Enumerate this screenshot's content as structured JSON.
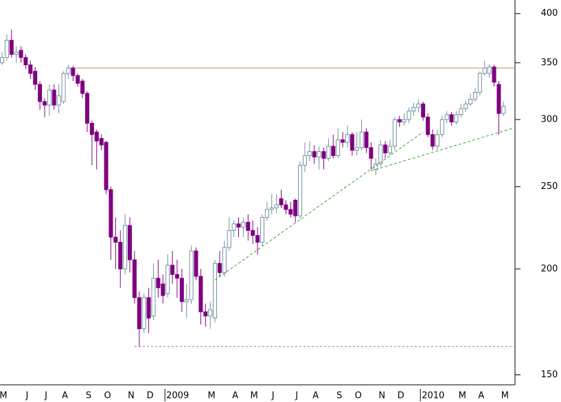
{
  "chart_data": {
    "type": "candlestick",
    "categories": [
      "M",
      null,
      null,
      null,
      null,
      "J",
      null,
      null,
      null,
      "J",
      null,
      null,
      null,
      "A",
      null,
      null,
      null,
      null,
      "S",
      null,
      null,
      null,
      "O",
      null,
      null,
      null,
      null,
      "N",
      null,
      null,
      null,
      "D",
      null,
      null,
      null,
      "2009",
      null,
      null,
      null,
      null,
      null,
      null,
      null,
      null,
      "M",
      null,
      null,
      null,
      null,
      "A",
      null,
      null,
      null,
      "M",
      null,
      null,
      null,
      "J",
      null,
      null,
      null,
      null,
      "J",
      null,
      null,
      null,
      "A",
      null,
      null,
      null,
      null,
      "S",
      null,
      null,
      null,
      "O",
      null,
      null,
      null,
      null,
      "N",
      null,
      null,
      null,
      "D",
      null,
      null,
      null,
      null,
      "2010",
      null,
      null,
      null,
      null,
      null,
      null,
      null,
      "M",
      null,
      null,
      null,
      "A",
      null,
      null,
      null,
      null,
      "M"
    ],
    "open": [
      350,
      355,
      372,
      358,
      362,
      355,
      348,
      342,
      330,
      315,
      312,
      325,
      312,
      315,
      340,
      345,
      338,
      333,
      322,
      297,
      290,
      285,
      282,
      248,
      218,
      215,
      200,
      225,
      205,
      185,
      170,
      185,
      176,
      195,
      192,
      187,
      202,
      197,
      195,
      183,
      184,
      210,
      196,
      178,
      176,
      175,
      203,
      198,
      212,
      222,
      226,
      224,
      227,
      222,
      219,
      215,
      230,
      235,
      236,
      242,
      238,
      235,
      241,
      231,
      265,
      272,
      275,
      271,
      275,
      270,
      279,
      272,
      284,
      282,
      288,
      276,
      278,
      290,
      278,
      262,
      266,
      280,
      274,
      279,
      300,
      298,
      300,
      307,
      310,
      313,
      302,
      288,
      279,
      288,
      300,
      304,
      298,
      304,
      309,
      313,
      317,
      323,
      340,
      340,
      346,
      330,
      305
    ],
    "high": [
      360,
      378,
      383,
      366,
      366,
      358,
      352,
      346,
      333,
      318,
      330,
      330,
      330,
      342,
      348,
      347,
      340,
      335,
      324,
      299,
      292,
      288,
      283,
      250,
      230,
      222,
      232,
      230,
      210,
      188,
      187,
      190,
      203,
      205,
      197,
      208,
      210,
      205,
      200,
      192,
      213,
      212,
      200,
      182,
      183,
      205,
      210,
      216,
      230,
      228,
      230,
      230,
      232,
      228,
      224,
      232,
      240,
      245,
      245,
      248,
      241,
      240,
      242,
      268,
      282,
      283,
      280,
      279,
      278,
      285,
      288,
      293,
      290,
      295,
      290,
      290,
      300,
      293,
      282,
      270,
      284,
      283,
      284,
      302,
      303,
      305,
      310,
      314,
      317,
      315,
      305,
      292,
      292,
      303,
      307,
      306,
      307,
      313,
      316,
      322,
      327,
      342,
      352,
      349,
      348,
      333,
      315
    ],
    "low": [
      348,
      352,
      355,
      350,
      350,
      344,
      335,
      325,
      308,
      302,
      303,
      308,
      305,
      313,
      335,
      333,
      328,
      318,
      290,
      265,
      262,
      276,
      245,
      205,
      200,
      190,
      197,
      198,
      182,
      162,
      168,
      168,
      174,
      185,
      182,
      185,
      192,
      185,
      178,
      175,
      182,
      194,
      172,
      171,
      170,
      173,
      196,
      196,
      210,
      218,
      218,
      218,
      216,
      214,
      208,
      213,
      228,
      232,
      233,
      236,
      232,
      230,
      227,
      229,
      260,
      268,
      266,
      262,
      262,
      268,
      270,
      270,
      278,
      278,
      272,
      272,
      276,
      274,
      262,
      258,
      264,
      270,
      272,
      276,
      294,
      295,
      297,
      303,
      306,
      299,
      286,
      276,
      276,
      286,
      297,
      295,
      296,
      302,
      306,
      311,
      315,
      320,
      338,
      336,
      328,
      288,
      303
    ],
    "close": [
      355,
      372,
      358,
      360,
      355,
      348,
      340,
      330,
      315,
      312,
      325,
      312,
      320,
      340,
      345,
      338,
      331,
      322,
      297,
      288,
      283,
      280,
      248,
      218,
      215,
      200,
      225,
      205,
      185,
      170,
      185,
      175,
      195,
      190,
      186,
      202,
      197,
      195,
      183,
      184,
      210,
      196,
      178,
      176,
      179,
      203,
      198,
      212,
      222,
      226,
      224,
      227,
      222,
      219,
      215,
      230,
      235,
      236,
      238,
      238,
      235,
      232,
      231,
      265,
      272,
      275,
      271,
      275,
      270,
      279,
      272,
      284,
      282,
      288,
      276,
      278,
      290,
      278,
      270,
      266,
      280,
      274,
      279,
      300,
      298,
      300,
      307,
      310,
      313,
      302,
      288,
      279,
      288,
      300,
      304,
      298,
      304,
      309,
      313,
      317,
      323,
      340,
      345,
      346,
      332,
      305,
      311
    ],
    "ylim": [
      146,
      415
    ],
    "yticks": [
      150,
      200,
      250,
      300,
      350,
      400
    ],
    "log_scale": true,
    "up_color": "#6f8fa0",
    "down_color": "#800080",
    "reference_lines": [
      {
        "value": 345,
        "from": 14,
        "color": "#d08850",
        "style": "solid"
      },
      {
        "value": 162,
        "from": 28,
        "color": "#8080a0",
        "style": "dotted"
      }
    ],
    "trendlines": [
      {
        "points": [
          [
            45,
            194
          ],
          [
            89,
            290
          ]
        ],
        "color": "#2e9e2e"
      },
      {
        "points": [
          [
            78,
            261
          ],
          [
            108,
            293
          ]
        ],
        "color": "#2e9e2e"
      }
    ]
  }
}
